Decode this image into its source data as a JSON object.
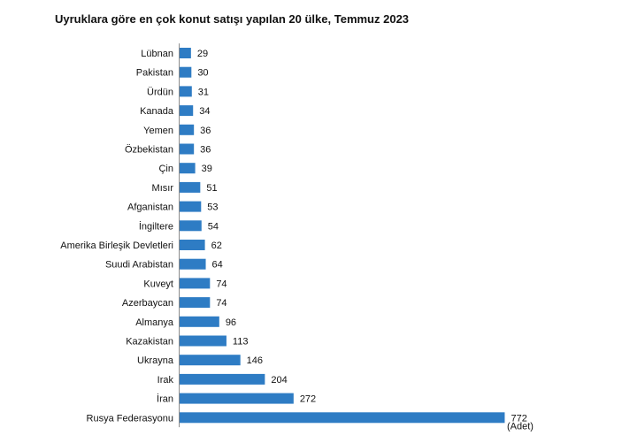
{
  "chart_data": {
    "type": "bar",
    "orientation": "horizontal",
    "title": "Uyruklara göre en çok konut satışı yapılan 20 ülke, Temmuz 2023",
    "unit_label": "(Adet)",
    "categories": [
      "Lübnan",
      "Pakistan",
      "Ürdün",
      "Kanada",
      "Yemen",
      "Özbekistan",
      "Çin",
      "Mısır",
      "Afganistan",
      "İngiltere",
      "Amerika Birleşik Devletleri",
      "Suudi Arabistan",
      "Kuveyt",
      "Azerbaycan",
      "Almanya",
      "Kazakistan",
      "Ukrayna",
      "Irak",
      "İran",
      "Rusya Federasyonu"
    ],
    "values": [
      29,
      30,
      31,
      34,
      36,
      36,
      39,
      51,
      53,
      54,
      62,
      64,
      74,
      74,
      96,
      113,
      146,
      204,
      272,
      772
    ],
    "data_labels": true,
    "bar_color": "#2E7CC4",
    "grid": false,
    "legend": "none",
    "xlim": [
      0,
      880
    ]
  }
}
